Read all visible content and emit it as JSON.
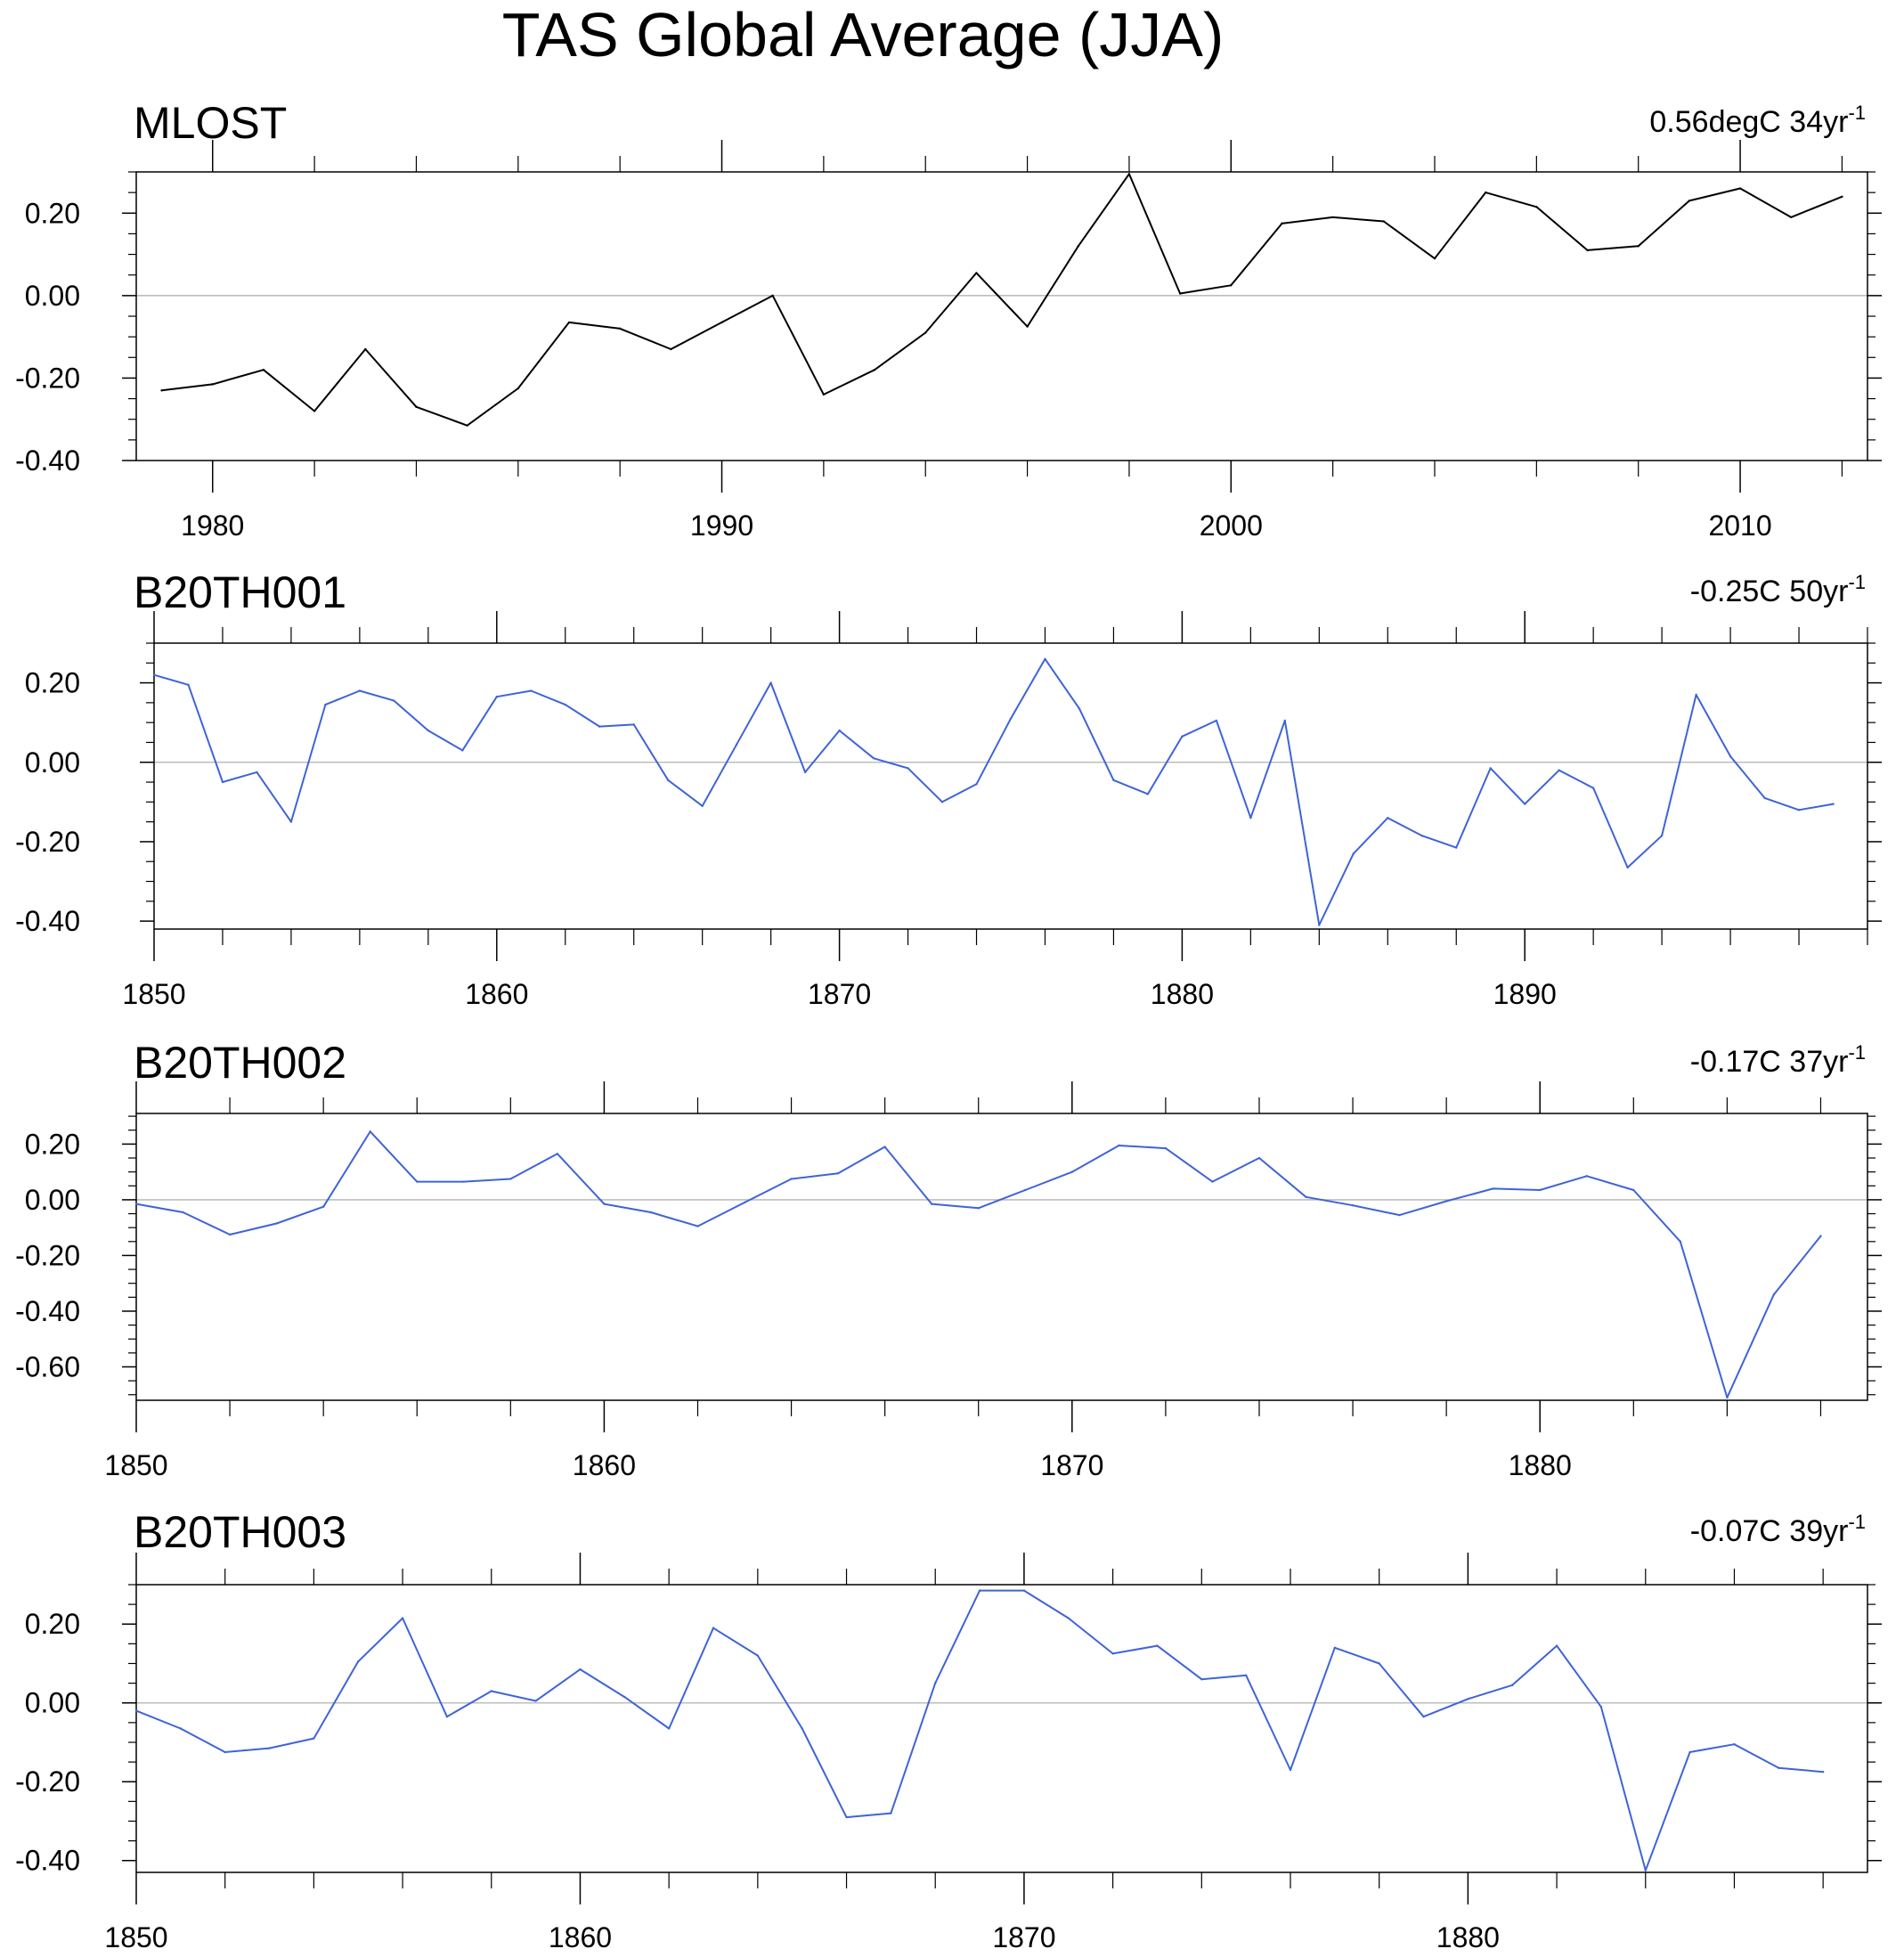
{
  "title": "TAS Global Average (JJA)",
  "colors": {
    "observed": "#000000",
    "model": "#3f63d8",
    "zero_line": "#bdbdbd",
    "axis": "#000000"
  },
  "chart_data": [
    {
      "type": "line",
      "name": "MLOST",
      "trend_value": "0.56degC 34yr",
      "trend_exponent": "-1",
      "x_start": 1979,
      "xlim": [
        1978.5,
        2012.5
      ],
      "ylim": [
        -0.4,
        0.3
      ],
      "x_ticks": [
        1980,
        1990,
        2000,
        2010
      ],
      "y_ticks": [
        0.2,
        0.0,
        -0.2,
        -0.4
      ],
      "y_tick_labels": [
        "0.20",
        "0.00",
        "-0.20",
        "-0.40"
      ],
      "zero_line": true,
      "color_key": "observed",
      "values": [
        -0.23,
        -0.215,
        -0.18,
        -0.28,
        -0.13,
        -0.27,
        -0.315,
        -0.225,
        -0.065,
        -0.08,
        -0.13,
        -0.065,
        0.0,
        -0.24,
        -0.18,
        -0.09,
        0.055,
        -0.075,
        0.12,
        0.295,
        0.005,
        0.025,
        0.175,
        0.19,
        0.18,
        0.09,
        0.25,
        0.215,
        0.11,
        0.12,
        0.23,
        0.26,
        0.19,
        0.24
      ]
    },
    {
      "type": "line",
      "name": "B20TH001",
      "trend_value": "-0.25C 50yr",
      "trend_exponent": "-1",
      "x_start": 1850,
      "xlim": [
        1850,
        1900
      ],
      "ylim": [
        -0.42,
        0.3
      ],
      "x_ticks": [
        1850,
        1860,
        1870,
        1880,
        1890
      ],
      "y_ticks": [
        0.2,
        0.0,
        -0.2,
        -0.4
      ],
      "y_tick_labels": [
        "0.20",
        "0.00",
        "-0.20",
        "-0.40"
      ],
      "zero_line": true,
      "color_key": "model",
      "values": [
        0.22,
        0.195,
        -0.05,
        -0.025,
        -0.15,
        0.145,
        0.18,
        0.155,
        0.08,
        0.03,
        0.165,
        0.18,
        0.145,
        0.09,
        0.095,
        -0.045,
        -0.11,
        0.045,
        0.2,
        -0.025,
        0.08,
        0.01,
        -0.015,
        -0.1,
        -0.055,
        0.11,
        0.26,
        0.135,
        -0.045,
        -0.08,
        0.065,
        0.105,
        -0.14,
        0.105,
        -0.41,
        -0.23,
        -0.14,
        -0.185,
        -0.215,
        -0.015,
        -0.105,
        -0.02,
        -0.065,
        -0.265,
        -0.185,
        0.17,
        0.015,
        -0.09,
        -0.12,
        -0.105
      ]
    },
    {
      "type": "line",
      "name": "B20TH002",
      "trend_value": "-0.17C 37yr",
      "trend_exponent": "-1",
      "x_start": 1850,
      "xlim": [
        1850,
        1887
      ],
      "ylim": [
        -0.72,
        0.31
      ],
      "x_ticks": [
        1850,
        1860,
        1870,
        1880
      ],
      "y_ticks": [
        0.2,
        0.0,
        -0.2,
        -0.4,
        -0.6
      ],
      "y_tick_labels": [
        "0.20",
        "0.00",
        "-0.20",
        "-0.40",
        "-0.60"
      ],
      "zero_line": true,
      "color_key": "model",
      "values": [
        -0.015,
        -0.045,
        -0.125,
        -0.085,
        -0.025,
        0.245,
        0.065,
        0.065,
        0.075,
        0.165,
        -0.015,
        -0.045,
        -0.095,
        -0.01,
        0.075,
        0.095,
        0.19,
        -0.015,
        -0.03,
        0.035,
        0.1,
        0.195,
        0.185,
        0.065,
        0.15,
        0.01,
        -0.02,
        -0.055,
        -0.005,
        0.04,
        0.035,
        0.085,
        0.035,
        -0.15,
        -0.71,
        -0.34,
        -0.13
      ]
    },
    {
      "type": "line",
      "name": "B20TH003",
      "trend_value": "-0.07C 39yr",
      "trend_exponent": "-1",
      "x_start": 1850,
      "xlim": [
        1850,
        1889
      ],
      "ylim": [
        -0.43,
        0.3
      ],
      "x_ticks": [
        1850,
        1860,
        1870,
        1880
      ],
      "y_ticks": [
        0.2,
        0.0,
        -0.2,
        -0.4
      ],
      "y_tick_labels": [
        "0.20",
        "0.00",
        "-0.20",
        "-0.40"
      ],
      "zero_line": true,
      "color_key": "model",
      "values": [
        -0.02,
        -0.065,
        -0.125,
        -0.115,
        -0.09,
        0.105,
        0.215,
        -0.035,
        0.03,
        0.005,
        0.085,
        0.015,
        -0.065,
        0.19,
        0.12,
        -0.065,
        -0.29,
        -0.28,
        0.05,
        0.285,
        0.285,
        0.215,
        0.125,
        0.145,
        0.06,
        0.07,
        -0.17,
        0.14,
        0.1,
        -0.035,
        0.01,
        0.045,
        0.145,
        -0.01,
        -0.425,
        -0.125,
        -0.105,
        -0.165,
        -0.175
      ]
    }
  ]
}
